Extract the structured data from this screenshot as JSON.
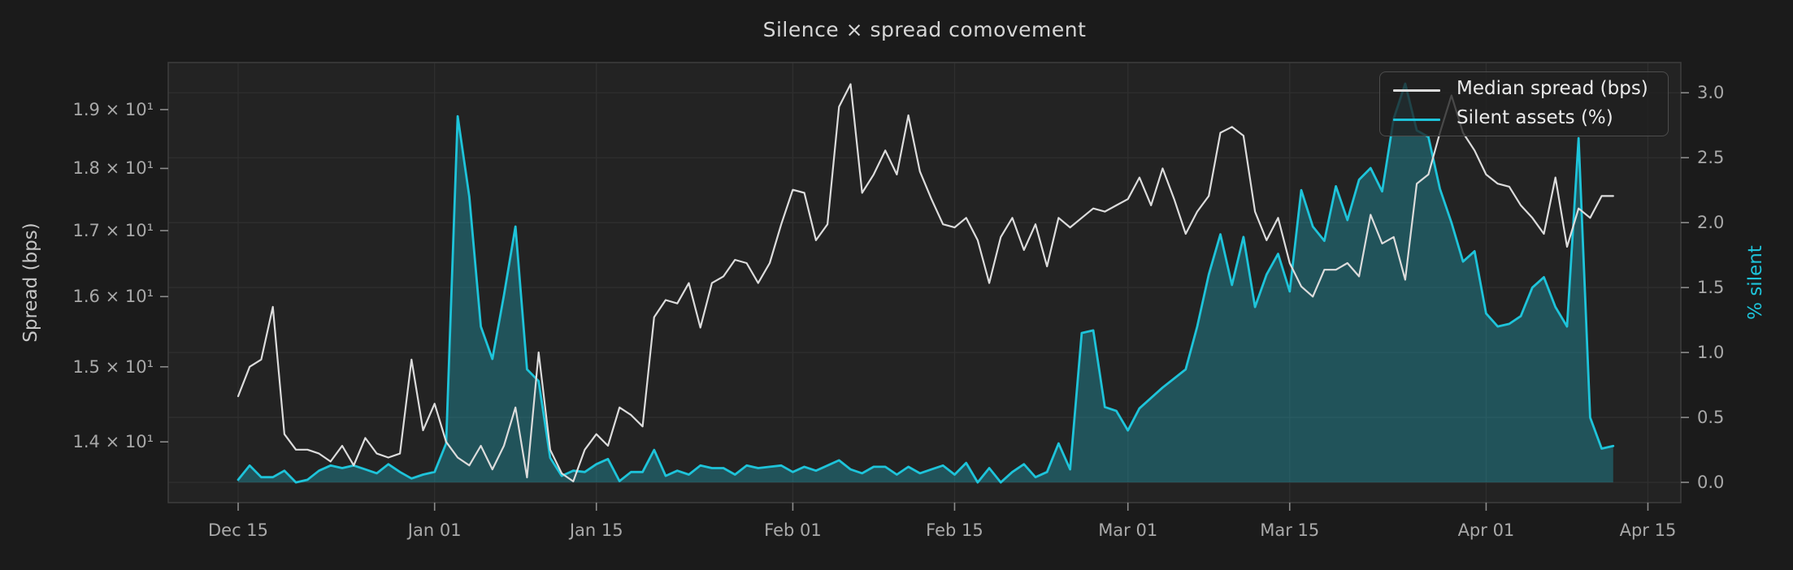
{
  "title": "Silence × spread comovement",
  "chart_data": {
    "type": "line",
    "title": "Silence × spread comovement",
    "x_axis": {
      "unit": "date",
      "first_point": "Dec 15",
      "last_point": "Apr 12",
      "points_are_daily": true,
      "tick_labels": [
        "Dec 15",
        "Jan 01",
        "Jan 15",
        "Feb 01",
        "Feb 15",
        "Mar 01",
        "Mar 15",
        "Apr 01",
        "Apr 15"
      ],
      "tick_days": [
        0,
        17,
        31,
        48,
        62,
        77,
        91,
        108,
        122
      ],
      "range_days": [
        -6.05,
        124.85
      ],
      "grid": true
    },
    "left_axis": {
      "label": "Spread (bps)",
      "scale": "log",
      "tick_values": [
        19,
        18,
        17,
        16,
        15,
        14
      ],
      "tick_labels": [
        "1.9 × 10¹",
        "1.8 × 10¹",
        "1.7 × 10¹",
        "1.6 × 10¹",
        "1.5 × 10¹",
        "1.4 × 10¹"
      ],
      "range": [
        13.24,
        19.84
      ],
      "grid": false,
      "label_color": "#c6c6c6"
    },
    "right_axis": {
      "label": "% silent",
      "scale": "linear",
      "tick_values": [
        3.0,
        2.5,
        2.0,
        1.5,
        1.0,
        0.5,
        0.0
      ],
      "tick_labels": [
        "3.0",
        "2.5",
        "2.0",
        "1.5",
        "1.0",
        "0.5",
        "0.0"
      ],
      "range": [
        -0.156,
        3.233
      ],
      "grid": true,
      "label_color": "#1ec4da"
    },
    "legend_position": "upper right",
    "series": [
      {
        "name": "Median spread (bps)",
        "axis": "left",
        "color": "#dcdcdc",
        "line_width": 2.2,
        "fill": false,
        "values": [
          14.6,
          15.0,
          15.1,
          15.85,
          14.1,
          13.9,
          13.9,
          13.85,
          13.75,
          13.95,
          13.7,
          14.05,
          13.85,
          13.8,
          13.85,
          15.1,
          14.15,
          14.5,
          14.0,
          13.8,
          13.7,
          13.95,
          13.65,
          13.95,
          14.45,
          13.55,
          15.2,
          13.9,
          13.6,
          13.5,
          13.9,
          14.1,
          13.95,
          14.45,
          14.35,
          14.2,
          15.7,
          15.95,
          15.9,
          16.2,
          15.55,
          16.2,
          16.3,
          16.55,
          16.5,
          16.2,
          16.5,
          17.1,
          17.65,
          17.6,
          16.85,
          17.1,
          19.05,
          19.45,
          17.6,
          17.9,
          18.3,
          17.9,
          18.9,
          17.95,
          17.5,
          17.1,
          17.05,
          17.2,
          16.85,
          16.2,
          16.9,
          17.2,
          16.7,
          17.1,
          16.45,
          17.2,
          17.05,
          17.2,
          17.35,
          17.3,
          17.4,
          17.5,
          17.85,
          17.4,
          18.0,
          17.5,
          16.95,
          17.3,
          17.55,
          18.6,
          18.7,
          18.55,
          17.3,
          16.85,
          17.2,
          16.5,
          16.15,
          16.0,
          16.4,
          16.4,
          16.5,
          16.3,
          17.25,
          16.8,
          16.9,
          16.25,
          17.75,
          17.9,
          18.6,
          19.25,
          18.6,
          18.3,
          17.9,
          17.75,
          17.7,
          17.4,
          17.2,
          16.95,
          17.85,
          16.75,
          17.35,
          17.2,
          17.55,
          17.55
        ]
      },
      {
        "name": "Silent assets (%)",
        "axis": "right",
        "color": "#1ec4da",
        "line_width": 2.8,
        "fill": true,
        "fill_color": "rgba(30,196,218,0.30)",
        "values": [
          0.02,
          0.13,
          0.04,
          0.04,
          0.09,
          0.0,
          0.02,
          0.09,
          0.13,
          0.11,
          0.13,
          0.1,
          0.07,
          0.14,
          0.08,
          0.03,
          0.06,
          0.08,
          0.3,
          2.82,
          2.2,
          1.2,
          0.95,
          1.44,
          1.97,
          0.87,
          0.78,
          0.19,
          0.05,
          0.09,
          0.08,
          0.14,
          0.18,
          0.01,
          0.08,
          0.08,
          0.25,
          0.05,
          0.09,
          0.06,
          0.13,
          0.11,
          0.11,
          0.06,
          0.13,
          0.11,
          0.12,
          0.13,
          0.08,
          0.12,
          0.09,
          0.13,
          0.17,
          0.1,
          0.07,
          0.12,
          0.12,
          0.06,
          0.12,
          0.07,
          0.1,
          0.13,
          0.06,
          0.15,
          0.0,
          0.11,
          0.0,
          0.08,
          0.14,
          0.04,
          0.08,
          0.3,
          0.1,
          1.15,
          1.17,
          0.58,
          0.55,
          0.4,
          0.57,
          0.65,
          0.73,
          0.8,
          0.87,
          1.2,
          1.6,
          1.91,
          1.52,
          1.89,
          1.35,
          1.6,
          1.76,
          1.47,
          2.25,
          1.97,
          1.86,
          2.28,
          2.02,
          2.33,
          2.42,
          2.24,
          2.8,
          3.07,
          2.71,
          2.66,
          2.26,
          2.0,
          1.7,
          1.78,
          1.3,
          1.2,
          1.22,
          1.28,
          1.5,
          1.58,
          1.35,
          1.2,
          2.65,
          0.5,
          0.26,
          0.28
        ]
      }
    ],
    "colors": {
      "figure_background": "#1b1b1b",
      "axes_background": "#232323",
      "grid": "#2f2f2f",
      "spine": "#3c3c3c",
      "tick_mark": "#8c8c8c",
      "tick_label": "#a9a9a9",
      "title": "#d6d6d6"
    }
  }
}
